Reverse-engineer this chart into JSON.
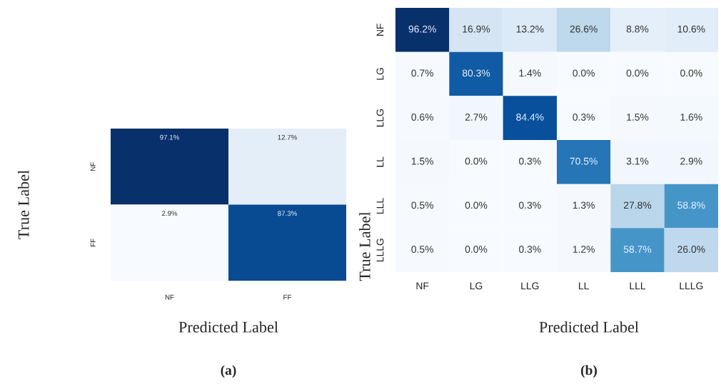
{
  "chart_data": [
    {
      "type": "heatmap",
      "xlabel": "Predicted Label",
      "ylabel": "True Label",
      "categories": [
        "NF",
        "FF"
      ],
      "y_categories": [
        "NF",
        "FF"
      ],
      "cells": [
        [
          97.1,
          12.7
        ],
        [
          2.9,
          87.3
        ]
      ],
      "cell_labels": [
        [
          "97.1%",
          "12.7%"
        ],
        [
          "2.9%",
          "87.3%"
        ]
      ],
      "annotations": [
        "(a)"
      ]
    },
    {
      "type": "heatmap",
      "xlabel": "Predicted Label",
      "ylabel": "True Label",
      "categories": [
        "NF",
        "LG",
        "LLG",
        "LL",
        "LLL",
        "LLLG"
      ],
      "y_categories": [
        "NF",
        "LG",
        "LLG",
        "LL",
        "LLL",
        "LLLG"
      ],
      "cells": [
        [
          96.2,
          16.9,
          13.2,
          26.6,
          8.8,
          10.6
        ],
        [
          0.7,
          80.3,
          1.4,
          0.0,
          0.0,
          0.0
        ],
        [
          0.6,
          2.7,
          84.4,
          0.3,
          1.5,
          1.6
        ],
        [
          1.5,
          0.0,
          0.3,
          70.5,
          3.1,
          2.9
        ],
        [
          0.5,
          0.0,
          0.3,
          1.3,
          27.8,
          58.8
        ],
        [
          0.5,
          0.0,
          0.3,
          1.2,
          58.7,
          26.0
        ]
      ],
      "cell_labels": [
        [
          "96.2%",
          "16.9%",
          "13.2%",
          "26.6%",
          "8.8%",
          "10.6%"
        ],
        [
          "0.7%",
          "80.3%",
          "1.4%",
          "0.0%",
          "0.0%",
          "0.0%"
        ],
        [
          "0.6%",
          "2.7%",
          "84.4%",
          "0.3%",
          "1.5%",
          "1.6%"
        ],
        [
          "1.5%",
          "0.0%",
          "0.3%",
          "70.5%",
          "3.1%",
          "2.9%"
        ],
        [
          "0.5%",
          "0.0%",
          "0.3%",
          "1.3%",
          "27.8%",
          "58.8%"
        ],
        [
          "0.5%",
          "0.0%",
          "0.3%",
          "1.2%",
          "58.7%",
          "26.0%"
        ]
      ],
      "annotations": [
        "(b)"
      ]
    }
  ]
}
